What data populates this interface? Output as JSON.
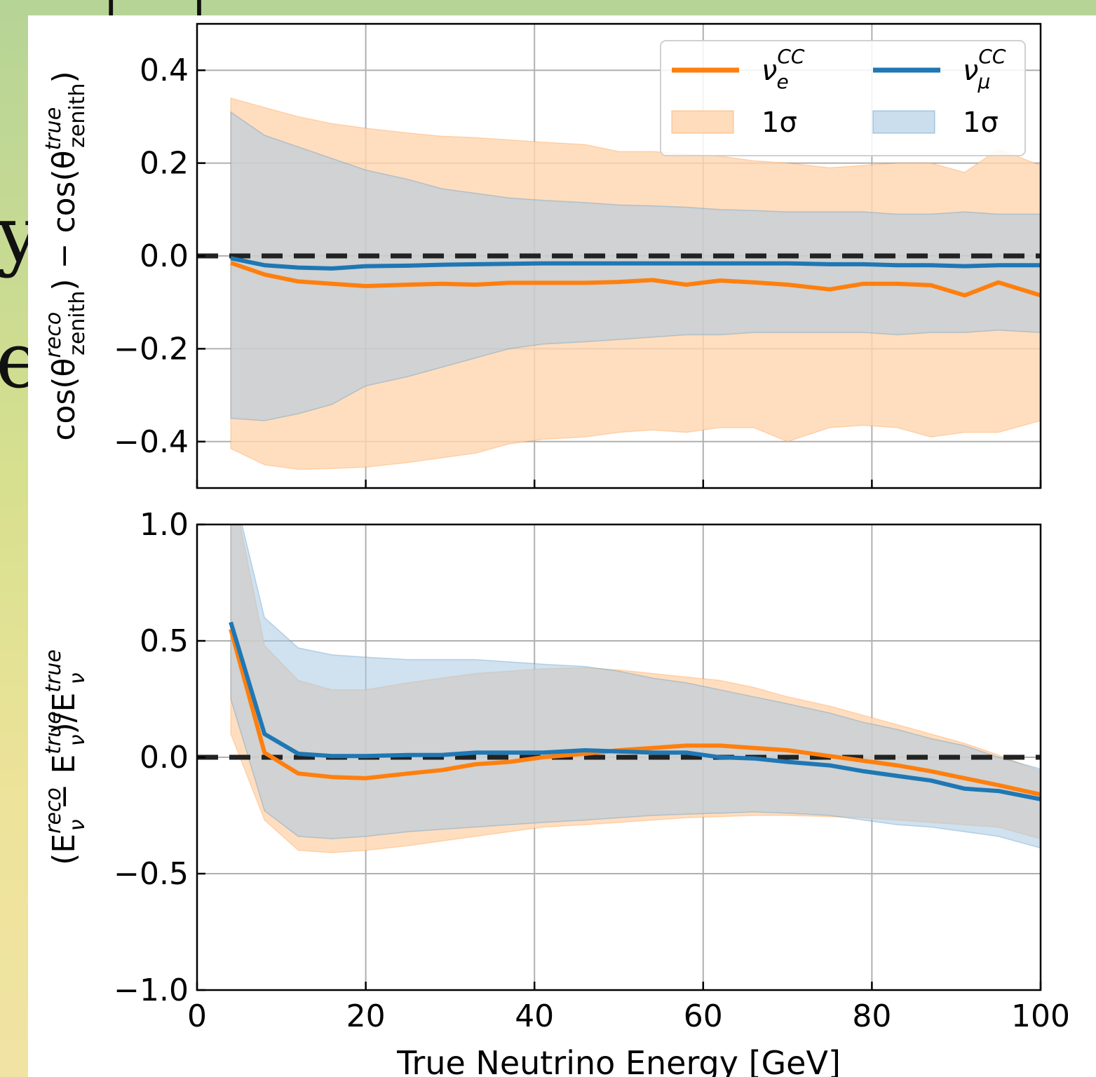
{
  "decor": {
    "fragments": [
      "[",
      "]",
      "y",
      "e"
    ]
  },
  "colors": {
    "nue": "#ff7f0e",
    "numu": "#1f77b4",
    "nue_band": "#ffd6b0",
    "numu_band": "#a9c8e2",
    "grid": "#b0b0b0",
    "zero_line": "#222222"
  },
  "legend": {
    "placement": "top-right of upper panel",
    "entries": [
      {
        "symbol": "ν",
        "sub": "e",
        "sup": "CC",
        "kind": "line",
        "series": "nue"
      },
      {
        "symbol": "ν",
        "sub": "μ",
        "sup": "CC",
        "kind": "line",
        "series": "numu"
      },
      {
        "text": "1σ",
        "kind": "band",
        "series": "nue"
      },
      {
        "text": "1σ",
        "kind": "band",
        "series": "numu"
      }
    ]
  },
  "chart_data": [
    {
      "type": "line",
      "ylabel": {
        "prefix": "cos(θ",
        "sup1": "reco",
        "sub1": "zenith",
        "mid": ") − cos(θ",
        "sup2": "true",
        "sub2": "zenith",
        "suffix": ")"
      },
      "xlim": [
        0,
        100
      ],
      "ylim": [
        -0.5,
        0.5
      ],
      "yticks": [
        "0.4",
        "0.2",
        "0.0",
        "−0.2",
        "−0.4"
      ],
      "ytick_values": [
        0.4,
        0.2,
        0.0,
        -0.2,
        -0.4
      ],
      "grid": true,
      "reference_line": 0.0,
      "x": [
        4,
        8,
        12,
        16,
        20,
        25,
        29,
        33,
        37,
        41,
        46,
        50,
        54,
        58,
        62,
        66,
        70,
        75,
        79,
        83,
        87,
        91,
        95,
        100
      ],
      "series": [
        {
          "key": "nue",
          "median": [
            -0.015,
            -0.04,
            -0.055,
            -0.06,
            -0.065,
            -0.062,
            -0.06,
            -0.062,
            -0.058,
            -0.058,
            -0.058,
            -0.056,
            -0.052,
            -0.062,
            -0.053,
            -0.057,
            -0.062,
            -0.072,
            -0.06,
            -0.06,
            -0.063,
            -0.085,
            -0.057,
            -0.085
          ],
          "upper": [
            0.34,
            0.32,
            0.3,
            0.285,
            0.275,
            0.265,
            0.258,
            0.255,
            0.25,
            0.245,
            0.24,
            0.225,
            0.225,
            0.22,
            0.215,
            0.205,
            0.2,
            0.19,
            0.195,
            0.2,
            0.2,
            0.18,
            0.23,
            0.195
          ],
          "lower": [
            -0.415,
            -0.45,
            -0.46,
            -0.458,
            -0.455,
            -0.445,
            -0.435,
            -0.425,
            -0.405,
            -0.395,
            -0.39,
            -0.38,
            -0.375,
            -0.38,
            -0.37,
            -0.37,
            -0.4,
            -0.37,
            -0.365,
            -0.37,
            -0.39,
            -0.38,
            -0.38,
            -0.355
          ]
        },
        {
          "key": "numu",
          "median": [
            -0.005,
            -0.02,
            -0.025,
            -0.027,
            -0.022,
            -0.021,
            -0.019,
            -0.018,
            -0.017,
            -0.016,
            -0.016,
            -0.016,
            -0.016,
            -0.016,
            -0.016,
            -0.016,
            -0.016,
            -0.018,
            -0.018,
            -0.02,
            -0.02,
            -0.022,
            -0.02,
            -0.02
          ],
          "upper": [
            0.31,
            0.26,
            0.235,
            0.21,
            0.185,
            0.165,
            0.145,
            0.135,
            0.125,
            0.12,
            0.115,
            0.11,
            0.108,
            0.105,
            0.1,
            0.098,
            0.095,
            0.095,
            0.095,
            0.09,
            0.09,
            0.095,
            0.09,
            0.09
          ],
          "lower": [
            -0.35,
            -0.355,
            -0.34,
            -0.32,
            -0.28,
            -0.26,
            -0.24,
            -0.22,
            -0.2,
            -0.19,
            -0.185,
            -0.18,
            -0.175,
            -0.17,
            -0.17,
            -0.165,
            -0.165,
            -0.165,
            -0.165,
            -0.17,
            -0.165,
            -0.165,
            -0.16,
            -0.165
          ]
        }
      ]
    },
    {
      "type": "line",
      "ylabel": {
        "prefix": "(E",
        "sub1": "ν",
        "sup1": "reco",
        "mid": " − E",
        "sub2": "ν",
        "sup2": "true",
        "mid2": ")/E",
        "sub3": "ν",
        "sup3": "true",
        "suffix": ""
      },
      "xlabel": "True Neutrino Energy [GeV]",
      "xlim": [
        0,
        100
      ],
      "ylim": [
        -1.0,
        1.0
      ],
      "xticks": [
        "0",
        "20",
        "40",
        "60",
        "80",
        "100"
      ],
      "xtick_values": [
        0,
        20,
        40,
        60,
        80,
        100
      ],
      "yticks": [
        "1.0",
        "0.5",
        "0.0",
        "−0.5",
        "−1.0"
      ],
      "ytick_values": [
        1.0,
        0.5,
        0.0,
        -0.5,
        -1.0
      ],
      "grid": true,
      "reference_line": 0.0,
      "x": [
        4,
        8,
        12,
        16,
        20,
        25,
        29,
        33,
        37,
        41,
        46,
        50,
        54,
        58,
        62,
        66,
        70,
        75,
        79,
        83,
        87,
        91,
        95,
        100
      ],
      "series": [
        {
          "key": "nue",
          "median": [
            0.55,
            0.02,
            -0.07,
            -0.085,
            -0.09,
            -0.07,
            -0.055,
            -0.03,
            -0.02,
            0.0,
            0.015,
            0.03,
            0.04,
            0.05,
            0.05,
            0.04,
            0.03,
            0.005,
            -0.015,
            -0.035,
            -0.06,
            -0.09,
            -0.12,
            -0.16
          ],
          "upper": [
            1.2,
            0.48,
            0.33,
            0.29,
            0.29,
            0.32,
            0.34,
            0.36,
            0.37,
            0.38,
            0.385,
            0.375,
            0.36,
            0.345,
            0.33,
            0.3,
            0.26,
            0.22,
            0.18,
            0.14,
            0.1,
            0.06,
            0.01,
            -0.06
          ],
          "lower": [
            0.1,
            -0.27,
            -0.4,
            -0.41,
            -0.4,
            -0.38,
            -0.36,
            -0.34,
            -0.32,
            -0.3,
            -0.29,
            -0.28,
            -0.27,
            -0.26,
            -0.255,
            -0.25,
            -0.25,
            -0.255,
            -0.26,
            -0.27,
            -0.28,
            -0.29,
            -0.3,
            -0.35
          ]
        },
        {
          "key": "numu",
          "median": [
            0.58,
            0.1,
            0.015,
            0.005,
            0.005,
            0.01,
            0.01,
            0.02,
            0.02,
            0.02,
            0.03,
            0.025,
            0.02,
            0.02,
            0.0,
            -0.005,
            -0.02,
            -0.035,
            -0.06,
            -0.08,
            -0.1,
            -0.135,
            -0.145,
            -0.18
          ],
          "upper": [
            1.2,
            0.6,
            0.47,
            0.44,
            0.43,
            0.42,
            0.42,
            0.42,
            0.41,
            0.4,
            0.39,
            0.37,
            0.34,
            0.32,
            0.29,
            0.26,
            0.23,
            0.19,
            0.15,
            0.12,
            0.08,
            0.05,
            0.0,
            -0.05
          ],
          "lower": [
            0.25,
            -0.23,
            -0.34,
            -0.35,
            -0.34,
            -0.32,
            -0.31,
            -0.3,
            -0.29,
            -0.28,
            -0.27,
            -0.26,
            -0.25,
            -0.245,
            -0.24,
            -0.235,
            -0.24,
            -0.25,
            -0.27,
            -0.29,
            -0.3,
            -0.32,
            -0.34,
            -0.39
          ]
        }
      ]
    }
  ]
}
